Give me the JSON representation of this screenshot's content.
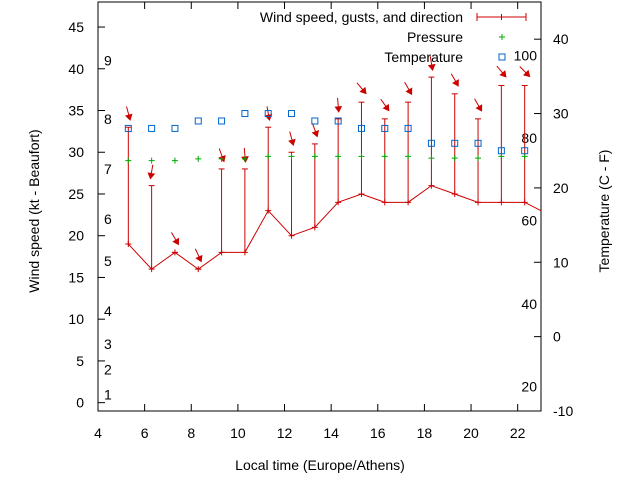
{
  "chart_data": {
    "type": "line",
    "xlabel": "Local time (Europe/Athens)",
    "ylabel": "Wind speed (kt - Beaufort)",
    "y2label": "Temperature (C - F)",
    "xlim": [
      4,
      23
    ],
    "ylim": [
      -1,
      48
    ],
    "y2lim": [
      -10,
      45
    ],
    "x_ticks": [
      4,
      6,
      8,
      10,
      12,
      14,
      16,
      18,
      20,
      22
    ],
    "y_ticks": [
      0,
      5,
      10,
      15,
      20,
      25,
      30,
      35,
      40,
      45
    ],
    "y2_ticks": [
      -10,
      0,
      10,
      20,
      30,
      40
    ],
    "beaufort_labels": [
      {
        "label": "1",
        "kt": 1
      },
      {
        "label": "2",
        "kt": 4
      },
      {
        "label": "3",
        "kt": 7
      },
      {
        "label": "4",
        "kt": 11
      },
      {
        "label": "5",
        "kt": 17
      },
      {
        "label": "6",
        "kt": 22
      },
      {
        "label": "7",
        "kt": 28
      },
      {
        "label": "8",
        "kt": 34
      },
      {
        "label": "9",
        "kt": 41
      }
    ],
    "fahrenheit_labels": [
      {
        "label": "20",
        "celsius": -6.7
      },
      {
        "label": "40",
        "celsius": 4.4
      },
      {
        "label": "60",
        "celsius": 15.6
      },
      {
        "label": "80",
        "celsius": 26.7
      },
      {
        "label": "100",
        "celsius": 37.8
      }
    ],
    "legend_position": "top-right",
    "series": [
      {
        "name": "Wind speed, gusts, and direction",
        "color": "#cc0000",
        "x": [
          5.3,
          6.3,
          7.3,
          8.3,
          9.3,
          10.3,
          11.3,
          12.3,
          13.3,
          14.3,
          15.3,
          16.3,
          17.3,
          18.3,
          19.3,
          20.3,
          21.3,
          22.3
        ],
        "values": [
          19,
          16,
          18,
          16,
          18,
          18,
          23,
          20,
          21,
          24,
          25,
          24,
          24,
          26,
          25,
          24,
          24,
          24
        ],
        "gusts": [
          33,
          26,
          18,
          16,
          28,
          28,
          33,
          30,
          31,
          34,
          36,
          34,
          36,
          39,
          37,
          34,
          38,
          38
        ],
        "direction_deg": [
          345,
          10,
          330,
          335,
          340,
          355,
          350,
          345,
          340,
          355,
          320,
          325,
          330,
          350,
          330,
          330,
          320,
          315
        ]
      },
      {
        "name": "Pressure",
        "color": "#00aa00",
        "x": [
          5.3,
          6.3,
          7.3,
          8.3,
          9.3,
          10.3,
          11.3,
          12.3,
          13.3,
          14.3,
          15.3,
          16.3,
          17.3,
          18.3,
          19.3,
          20.3,
          21.3,
          22.3
        ],
        "values": [
          29.0,
          29.0,
          29.0,
          29.2,
          29.2,
          29.2,
          29.5,
          29.5,
          29.5,
          29.5,
          29.5,
          29.5,
          29.5,
          29.3,
          29.3,
          29.3,
          29.5,
          29.5
        ]
      },
      {
        "name": "Temperature",
        "color": "#0066cc",
        "x": [
          5.3,
          6.3,
          7.3,
          8.3,
          9.3,
          10.3,
          11.3,
          12.3,
          13.3,
          14.3,
          15.3,
          16.3,
          17.3,
          18.3,
          19.3,
          20.3,
          21.3,
          22.3
        ],
        "values": [
          28,
          28,
          28,
          29,
          29,
          30,
          30,
          30,
          29,
          29,
          28,
          28,
          28,
          26,
          26,
          26,
          25,
          25
        ]
      }
    ]
  }
}
